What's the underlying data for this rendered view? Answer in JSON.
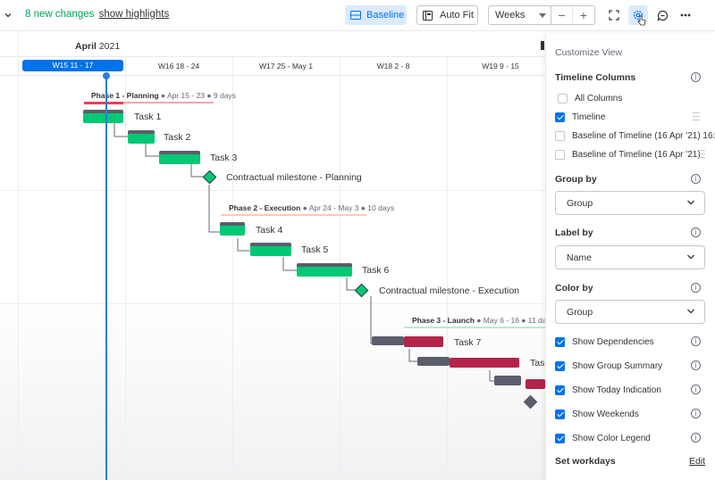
{
  "toolbar": {
    "changes_text": "8 new changes",
    "highlights_link": "show highlights",
    "baseline_label": "Baseline",
    "autofit_label": "Auto Fit",
    "zoom_value": "Weeks",
    "zoom_minus": "−",
    "zoom_plus": "+"
  },
  "timeline": {
    "month": "April",
    "year": "2021",
    "weeks": [
      "W15  11 - 17",
      "W16  18 - 24",
      "W17  25 - May 1",
      "W18  2 - 8",
      "W19  9 - 15"
    ],
    "current_week_index": 0
  },
  "phases": [
    {
      "name": "Phase 1 - Planning",
      "meta": " ● Apr 15 - 23 ● 9 days",
      "color": "#e2445c"
    },
    {
      "name": "Phase 2 - Execution",
      "meta": " ● Apr 24 - May 3 ● 10 days",
      "color": "#fdab3d"
    },
    {
      "name": "Phase 3 - Launch",
      "meta": " ● May 6 - 16 ● 11 da",
      "color": "#00c875"
    }
  ],
  "tasks": [
    "Task 1",
    "Task 2",
    "Task 3",
    "Contractual milestone - Planning",
    "Task 4",
    "Task 5",
    "Task 6",
    "Contractual milestone - Execution",
    "Task 7",
    "Tas"
  ],
  "colors": {
    "accent": "#0073ea",
    "green": "#00c875",
    "red": "#b3244a",
    "baseline": "#5a5d6b",
    "positive": "#00a25a"
  },
  "panel": {
    "title": "Customize View",
    "timeline_columns_title": "Timeline Columns",
    "columns": [
      {
        "label": "All Columns",
        "checked": false
      },
      {
        "label": "Timeline",
        "checked": true
      },
      {
        "label": "Baseline of Timeline (16 Apr '21) 16:",
        "checked": false
      },
      {
        "label": "Baseline of Timeline (16 Apr '21)",
        "checked": false
      }
    ],
    "group_by_title": "Group by",
    "group_by_value": "Group",
    "label_by_title": "Label by",
    "label_by_value": "Name",
    "color_by_title": "Color by",
    "color_by_value": "Group",
    "toggles": [
      {
        "label": "Show Dependencies",
        "checked": true
      },
      {
        "label": "Show Group Summary",
        "checked": true
      },
      {
        "label": "Show Today Indication",
        "checked": true
      },
      {
        "label": "Show Weekends",
        "checked": true
      },
      {
        "label": "Show Color Legend",
        "checked": true
      }
    ],
    "workdays_title": "Set workdays",
    "edit_label": "Edit",
    "info_glyph": "i"
  }
}
